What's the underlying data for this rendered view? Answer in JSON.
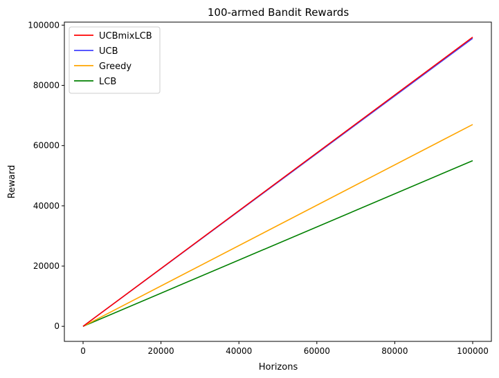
{
  "chart_data": {
    "type": "line",
    "title": "100-armed Bandit Rewards",
    "xlabel": "Horizons",
    "ylabel": "Reward",
    "xlim": [
      -4800,
      104800
    ],
    "ylim": [
      -5000,
      101000
    ],
    "xticks": [
      0,
      20000,
      40000,
      60000,
      80000,
      100000
    ],
    "xtick_labels": [
      "0",
      "20000",
      "40000",
      "60000",
      "80000",
      "100000"
    ],
    "yticks": [
      0,
      20000,
      40000,
      60000,
      80000,
      100000
    ],
    "ytick_labels": [
      "0",
      "20000",
      "40000",
      "60000",
      "80000",
      "100000"
    ],
    "grid": false,
    "legend_position": "top-left",
    "series": [
      {
        "name": "UCBmixLCB",
        "color": "#ff0000",
        "x": [
          0,
          100000
        ],
        "y": [
          0,
          96000
        ]
      },
      {
        "name": "UCB",
        "color": "#4040ff",
        "x": [
          0,
          100000
        ],
        "y": [
          0,
          95600
        ]
      },
      {
        "name": "Greedy",
        "color": "#ffa500",
        "x": [
          0,
          100000
        ],
        "y": [
          0,
          67000
        ]
      },
      {
        "name": "LCB",
        "color": "#008000",
        "x": [
          0,
          100000
        ],
        "y": [
          0,
          55000
        ]
      }
    ]
  }
}
